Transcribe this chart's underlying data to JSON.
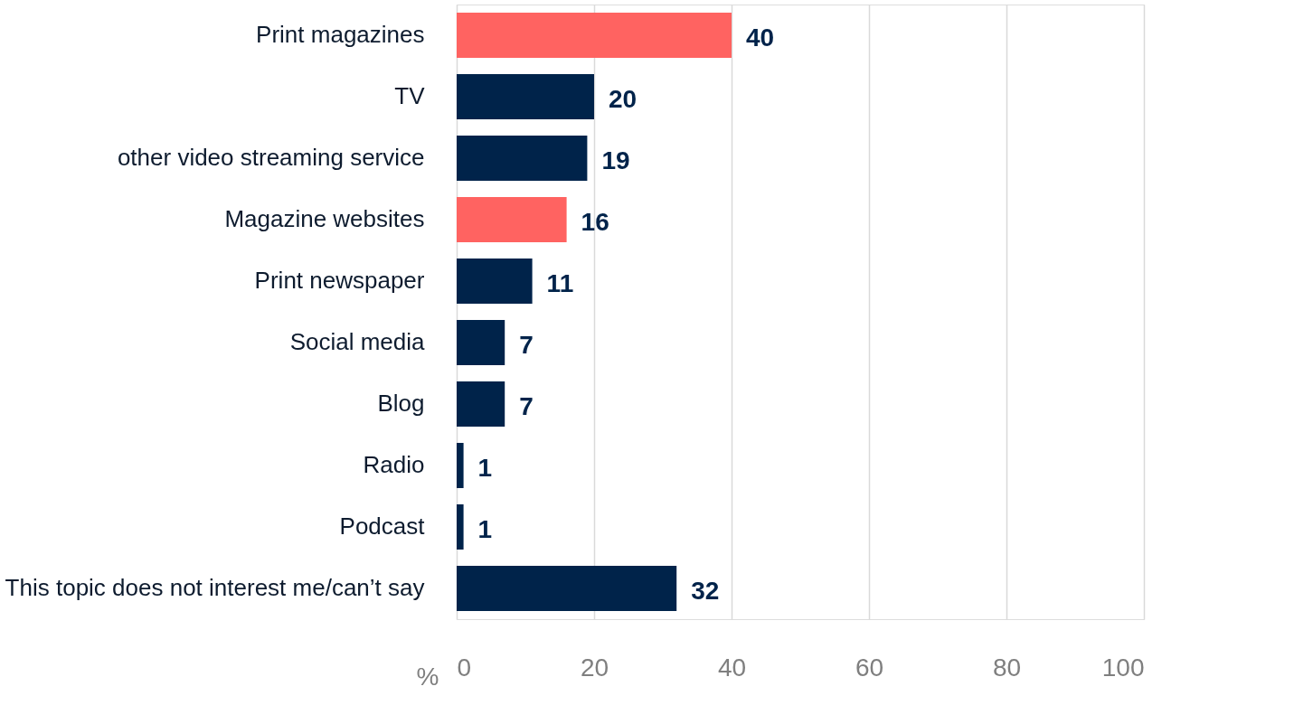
{
  "chart_data": {
    "type": "bar",
    "orientation": "horizontal",
    "xlabel": "%",
    "categories": [
      "Print magazines",
      "TV",
      "other video streaming service",
      "Magazine websites",
      "Print newspaper",
      "Social media",
      "Blog",
      "Radio",
      "Podcast",
      "This topic does not interest me/can’t say"
    ],
    "values": [
      40,
      20,
      19,
      16,
      11,
      7,
      7,
      1,
      1,
      32
    ],
    "colors": [
      "#ff6361",
      "#00234a",
      "#00234a",
      "#ff6361",
      "#00234a",
      "#00234a",
      "#00234a",
      "#00234a",
      "#00234a",
      "#00234a"
    ],
    "xlim": [
      0,
      100
    ],
    "xticks": [
      0,
      20,
      40,
      60,
      80,
      100
    ],
    "grid": "x",
    "data_labels": true
  }
}
